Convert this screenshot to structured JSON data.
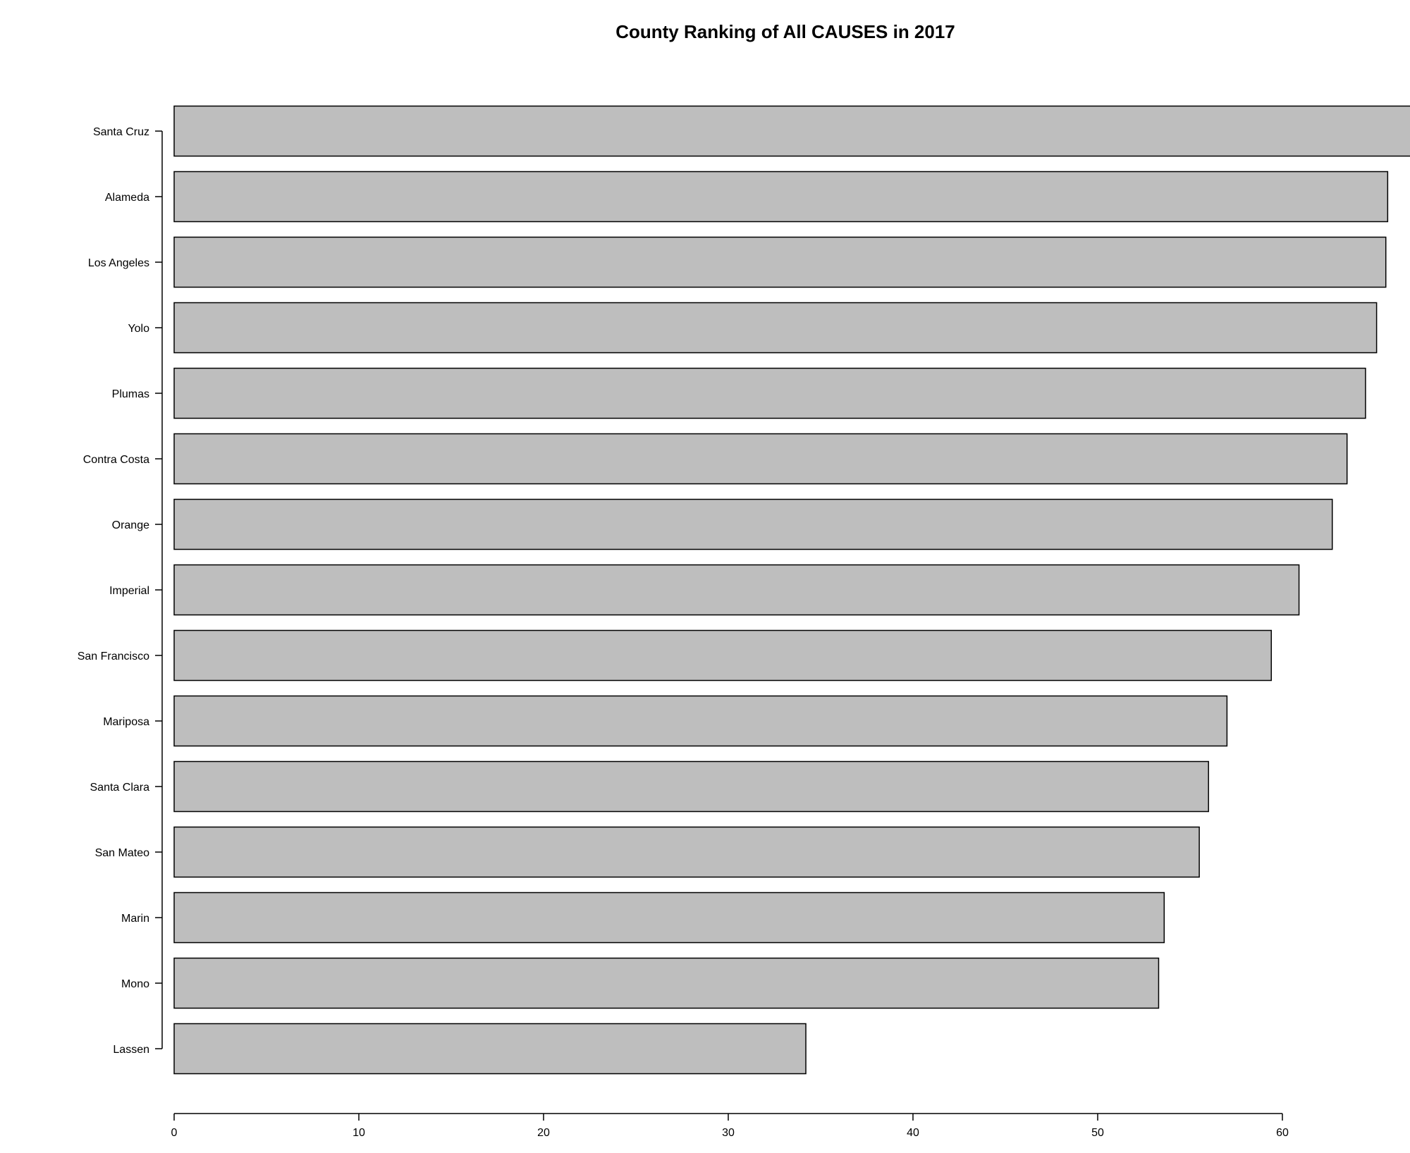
{
  "chart_data": {
    "type": "bar",
    "orientation": "horizontal",
    "title": "County Ranking of All CAUSES in 2017",
    "xlabel": "",
    "ylabel": "",
    "categories": [
      "Santa Cruz",
      "Alameda",
      "Los Angeles",
      "Yolo",
      "Plumas",
      "Contra Costa",
      "Orange",
      "Imperial",
      "San Francisco",
      "Mariposa",
      "Santa Clara",
      "San Mateo",
      "Marin",
      "Mono",
      "Lassen"
    ],
    "values": [
      67,
      65.7,
      65.6,
      65.1,
      64.5,
      63.5,
      62.7,
      60.9,
      59.4,
      57.0,
      56.0,
      55.5,
      53.6,
      53.3,
      34.2
    ],
    "xlim": [
      0,
      67
    ],
    "x_ticks": [
      0,
      10,
      20,
      30,
      40,
      50,
      60
    ],
    "grid": false,
    "legend": "none",
    "bar_fill": "#bebebe",
    "bar_stroke": "#000000"
  }
}
